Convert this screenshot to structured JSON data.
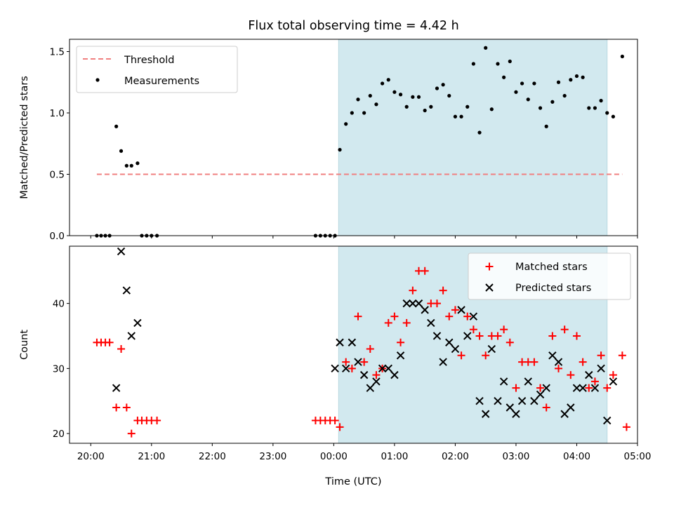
{
  "chart_data": [
    {
      "type": "scatter",
      "title": "Flux total observing time = 4.42 h",
      "ylabel": "Matched/Predicted stars",
      "xlabel": "",
      "x_unit": "hours since 20:00 UTC",
      "xlim": [
        -0.35,
        9.0
      ],
      "ylim": [
        0,
        1.6
      ],
      "yticks": [
        0.0,
        0.5,
        1.0,
        1.5
      ],
      "ytick_labels": [
        "0.0",
        "0.5",
        "1.0",
        "1.5"
      ],
      "shaded_interval": [
        4.08,
        8.5
      ],
      "shaded_color": "#d2e9ef",
      "legend_position": "upper left",
      "threshold": {
        "name": "Threshold",
        "value": 0.5,
        "x_range": [
          0.1,
          8.75
        ],
        "color": "#f08080"
      },
      "series": [
        {
          "name": "Measurements",
          "color": "#000000",
          "marker": "dot",
          "x": [
            0.1,
            0.17,
            0.24,
            0.31,
            0.42,
            0.5,
            0.59,
            0.67,
            0.77,
            0.84,
            0.92,
            1.0,
            1.09,
            3.7,
            3.78,
            3.86,
            3.94,
            4.02,
            4.1,
            4.2,
            4.3,
            4.4,
            4.5,
            4.6,
            4.7,
            4.8,
            4.9,
            5.0,
            5.1,
            5.2,
            5.3,
            5.4,
            5.5,
            5.6,
            5.7,
            5.8,
            5.9,
            6.0,
            6.1,
            6.2,
            6.3,
            6.4,
            6.5,
            6.6,
            6.7,
            6.8,
            6.9,
            7.0,
            7.1,
            7.2,
            7.3,
            7.4,
            7.5,
            7.6,
            7.7,
            7.8,
            7.9,
            8.0,
            8.1,
            8.2,
            8.3,
            8.4,
            8.5,
            8.6,
            8.75
          ],
          "y": [
            0.0,
            0.0,
            0.0,
            0.0,
            0.89,
            0.69,
            0.57,
            0.57,
            0.59,
            0.0,
            0.0,
            0.0,
            0.0,
            0.0,
            0.0,
            0.0,
            0.0,
            0.0,
            0.7,
            0.91,
            1.0,
            1.11,
            1.0,
            1.14,
            1.07,
            1.24,
            1.27,
            1.17,
            1.15,
            1.05,
            1.13,
            1.13,
            1.02,
            1.05,
            1.2,
            1.23,
            1.14,
            0.97,
            0.97,
            1.05,
            1.4,
            0.84,
            1.53,
            1.03,
            1.4,
            1.29,
            1.42,
            1.17,
            1.24,
            1.11,
            1.24,
            1.04,
            0.89,
            1.09,
            1.25,
            1.14,
            1.27,
            1.3,
            1.29,
            1.04,
            1.04,
            1.1,
            1.0,
            0.97,
            1.46
          ]
        }
      ]
    },
    {
      "type": "scatter",
      "title": "",
      "ylabel": "Count",
      "xlabel": "Time (UTC)",
      "x_unit": "hours since 20:00 UTC",
      "xlim": [
        -0.35,
        9.0
      ],
      "ylim": [
        18.5,
        48.8
      ],
      "yticks": [
        20,
        30,
        40
      ],
      "ytick_labels": [
        "20",
        "30",
        "40"
      ],
      "xticks": [
        0,
        1,
        2,
        3,
        4,
        5,
        6,
        7,
        8,
        9
      ],
      "xtick_labels": [
        "20:00",
        "21:00",
        "22:00",
        "23:00",
        "00:00",
        "01:00",
        "02:00",
        "03:00",
        "04:00",
        "05:00"
      ],
      "shaded_interval": [
        4.08,
        8.5
      ],
      "shaded_color": "#d2e9ef",
      "legend_position": "upper right",
      "series": [
        {
          "name": "Matched stars",
          "color": "#ff0000",
          "marker": "plus",
          "x": [
            0.1,
            0.17,
            0.24,
            0.31,
            0.42,
            0.5,
            0.59,
            0.67,
            0.77,
            0.84,
            0.92,
            1.0,
            1.09,
            3.7,
            3.78,
            3.86,
            3.94,
            4.02,
            4.1,
            4.2,
            4.3,
            4.4,
            4.5,
            4.6,
            4.7,
            4.8,
            4.9,
            5.0,
            5.1,
            5.2,
            5.3,
            5.4,
            5.5,
            5.6,
            5.7,
            5.8,
            5.9,
            6.0,
            6.1,
            6.2,
            6.3,
            6.4,
            6.5,
            6.6,
            6.7,
            6.8,
            6.9,
            7.0,
            7.1,
            7.2,
            7.3,
            7.4,
            7.5,
            7.6,
            7.7,
            7.8,
            7.9,
            8.0,
            8.1,
            8.2,
            8.3,
            8.4,
            8.5,
            8.6,
            8.75,
            8.82
          ],
          "y": [
            34,
            34,
            34,
            34,
            24,
            33,
            24,
            20,
            22,
            22,
            22,
            22,
            22,
            22,
            22,
            22,
            22,
            22,
            21,
            31,
            30,
            38,
            31,
            33,
            29,
            30,
            37,
            38,
            34,
            37,
            42,
            45,
            45,
            40,
            40,
            42,
            38,
            39,
            32,
            38,
            36,
            35,
            32,
            35,
            35,
            36,
            34,
            27,
            31,
            31,
            31,
            27,
            24,
            35,
            30,
            36,
            29,
            35,
            31,
            27,
            28,
            32,
            27,
            29,
            32,
            21
          ]
        },
        {
          "name": "Predicted stars",
          "color": "#000000",
          "marker": "x",
          "x": [
            0.42,
            0.5,
            0.59,
            0.67,
            0.77,
            4.02,
            4.1,
            4.2,
            4.3,
            4.4,
            4.5,
            4.6,
            4.7,
            4.8,
            4.9,
            5.0,
            5.1,
            5.2,
            5.3,
            5.4,
            5.5,
            5.6,
            5.7,
            5.8,
            5.9,
            6.0,
            6.1,
            6.2,
            6.3,
            6.4,
            6.5,
            6.6,
            6.7,
            6.8,
            6.9,
            7.0,
            7.1,
            7.2,
            7.3,
            7.4,
            7.5,
            7.6,
            7.7,
            7.8,
            7.9,
            8.0,
            8.1,
            8.2,
            8.3,
            8.4,
            8.5,
            8.6
          ],
          "y": [
            27,
            48,
            42,
            35,
            37,
            30,
            34,
            30,
            34,
            31,
            29,
            27,
            28,
            30,
            30,
            29,
            32,
            40,
            40,
            40,
            39,
            37,
            35,
            31,
            34,
            33,
            39,
            35,
            38,
            25,
            23,
            33,
            25,
            28,
            24,
            23,
            25,
            28,
            25,
            26,
            27,
            32,
            31,
            23,
            24,
            27,
            27,
            29,
            27,
            30,
            22,
            28
          ]
        }
      ]
    }
  ]
}
